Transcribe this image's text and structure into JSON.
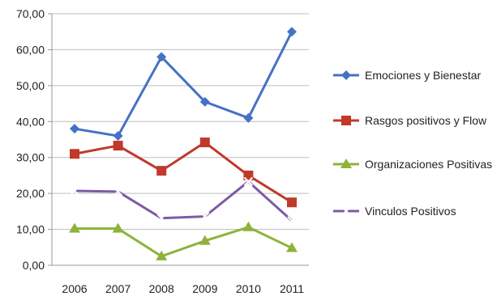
{
  "chart_data": {
    "type": "line",
    "categories": [
      "2006",
      "2007",
      "2008",
      "2009",
      "2010",
      "2011"
    ],
    "y_ticks": [
      "0,00",
      "10,00",
      "20,00",
      "30,00",
      "40,00",
      "50,00",
      "60,00",
      "70,00"
    ],
    "ylim": [
      0,
      70
    ],
    "grid": "horizontal",
    "legend_position": "right",
    "series": [
      {
        "name": "Emociones y Bienestar",
        "color": "#4472C4",
        "marker": "diamond",
        "values": [
          38,
          36,
          58,
          45.5,
          41,
          65
        ]
      },
      {
        "name": "Rasgos positivos y Flow",
        "color": "#C0392B",
        "marker": "square",
        "values": [
          31,
          33.3,
          26.3,
          34.2,
          25,
          17.5
        ]
      },
      {
        "name": "Organizaciones Positivas",
        "color": "#8DB33A",
        "marker": "triangle",
        "values": [
          10.2,
          10.2,
          2.5,
          6.8,
          10.6,
          4.8
        ]
      },
      {
        "name": "Vinculos Positivos",
        "color": "#7D5BA6",
        "marker": "cross",
        "values": [
          20.7,
          20.5,
          13.1,
          13.6,
          23.3,
          12.4
        ]
      }
    ]
  }
}
